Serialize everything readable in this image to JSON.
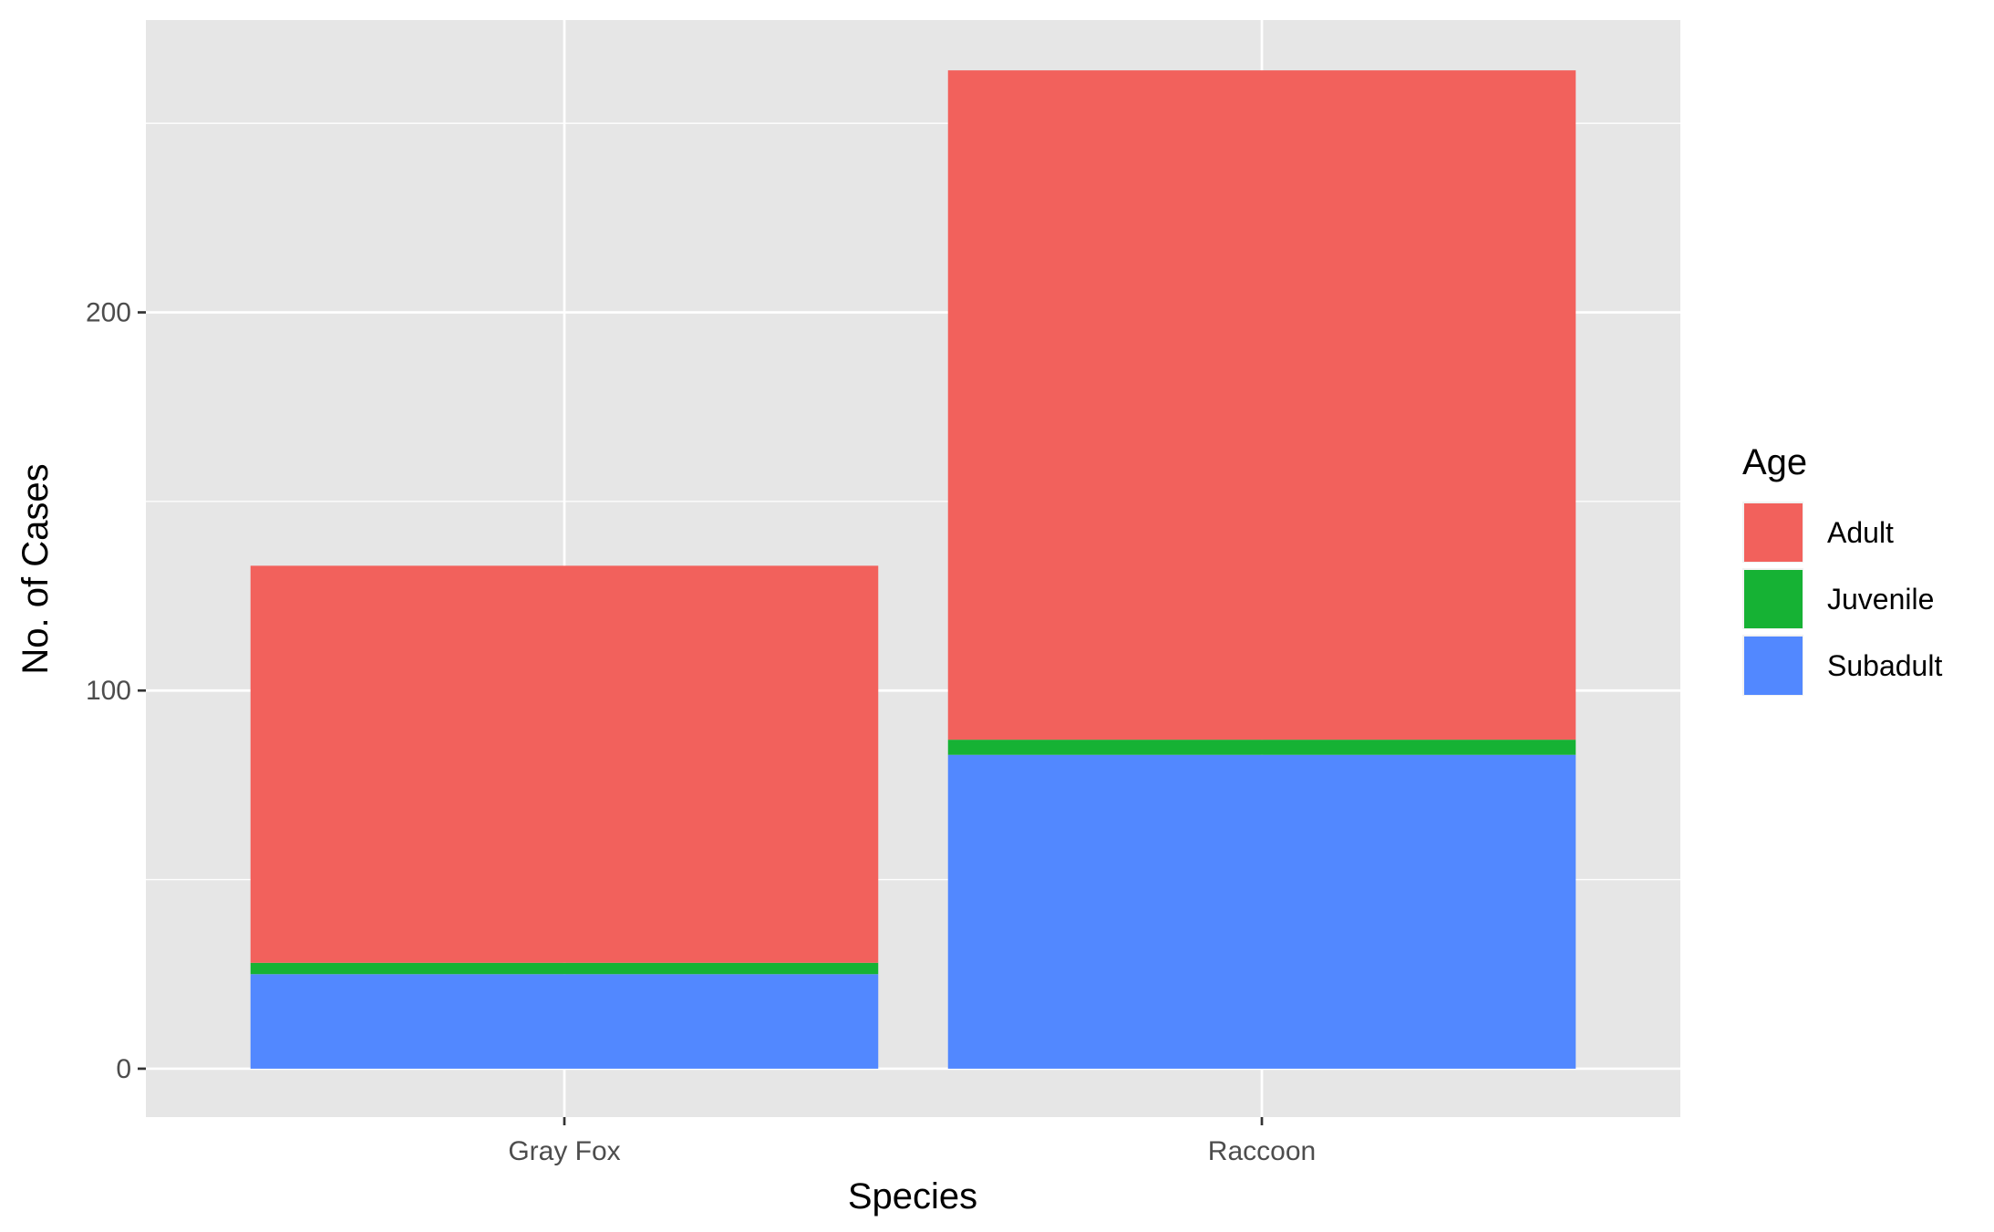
{
  "chart_data": {
    "type": "bar",
    "stacked": true,
    "categories": [
      "Gray Fox",
      "Raccoon"
    ],
    "series": [
      {
        "name": "Subadult",
        "values": [
          25,
          83
        ],
        "color": "#5288FF"
      },
      {
        "name": "Juvenile",
        "values": [
          3,
          4
        ],
        "color": "#16B234"
      },
      {
        "name": "Adult",
        "values": [
          105,
          177
        ],
        "color": "#F2615C"
      }
    ],
    "xlabel": "Species",
    "ylabel": "No. of Cases",
    "ylim": [
      -12.8,
      277.3
    ],
    "yticks": [
      0,
      100,
      200
    ],
    "ygrid_minor": [
      50,
      150,
      250
    ],
    "grid": true,
    "panel_background": "#E6E6E6",
    "legend": {
      "title": "Age",
      "placement": "right",
      "items": [
        {
          "label": "Adult",
          "color": "#F2615C"
        },
        {
          "label": "Juvenile",
          "color": "#16B234"
        },
        {
          "label": "Subadult",
          "color": "#5288FF"
        }
      ]
    }
  }
}
